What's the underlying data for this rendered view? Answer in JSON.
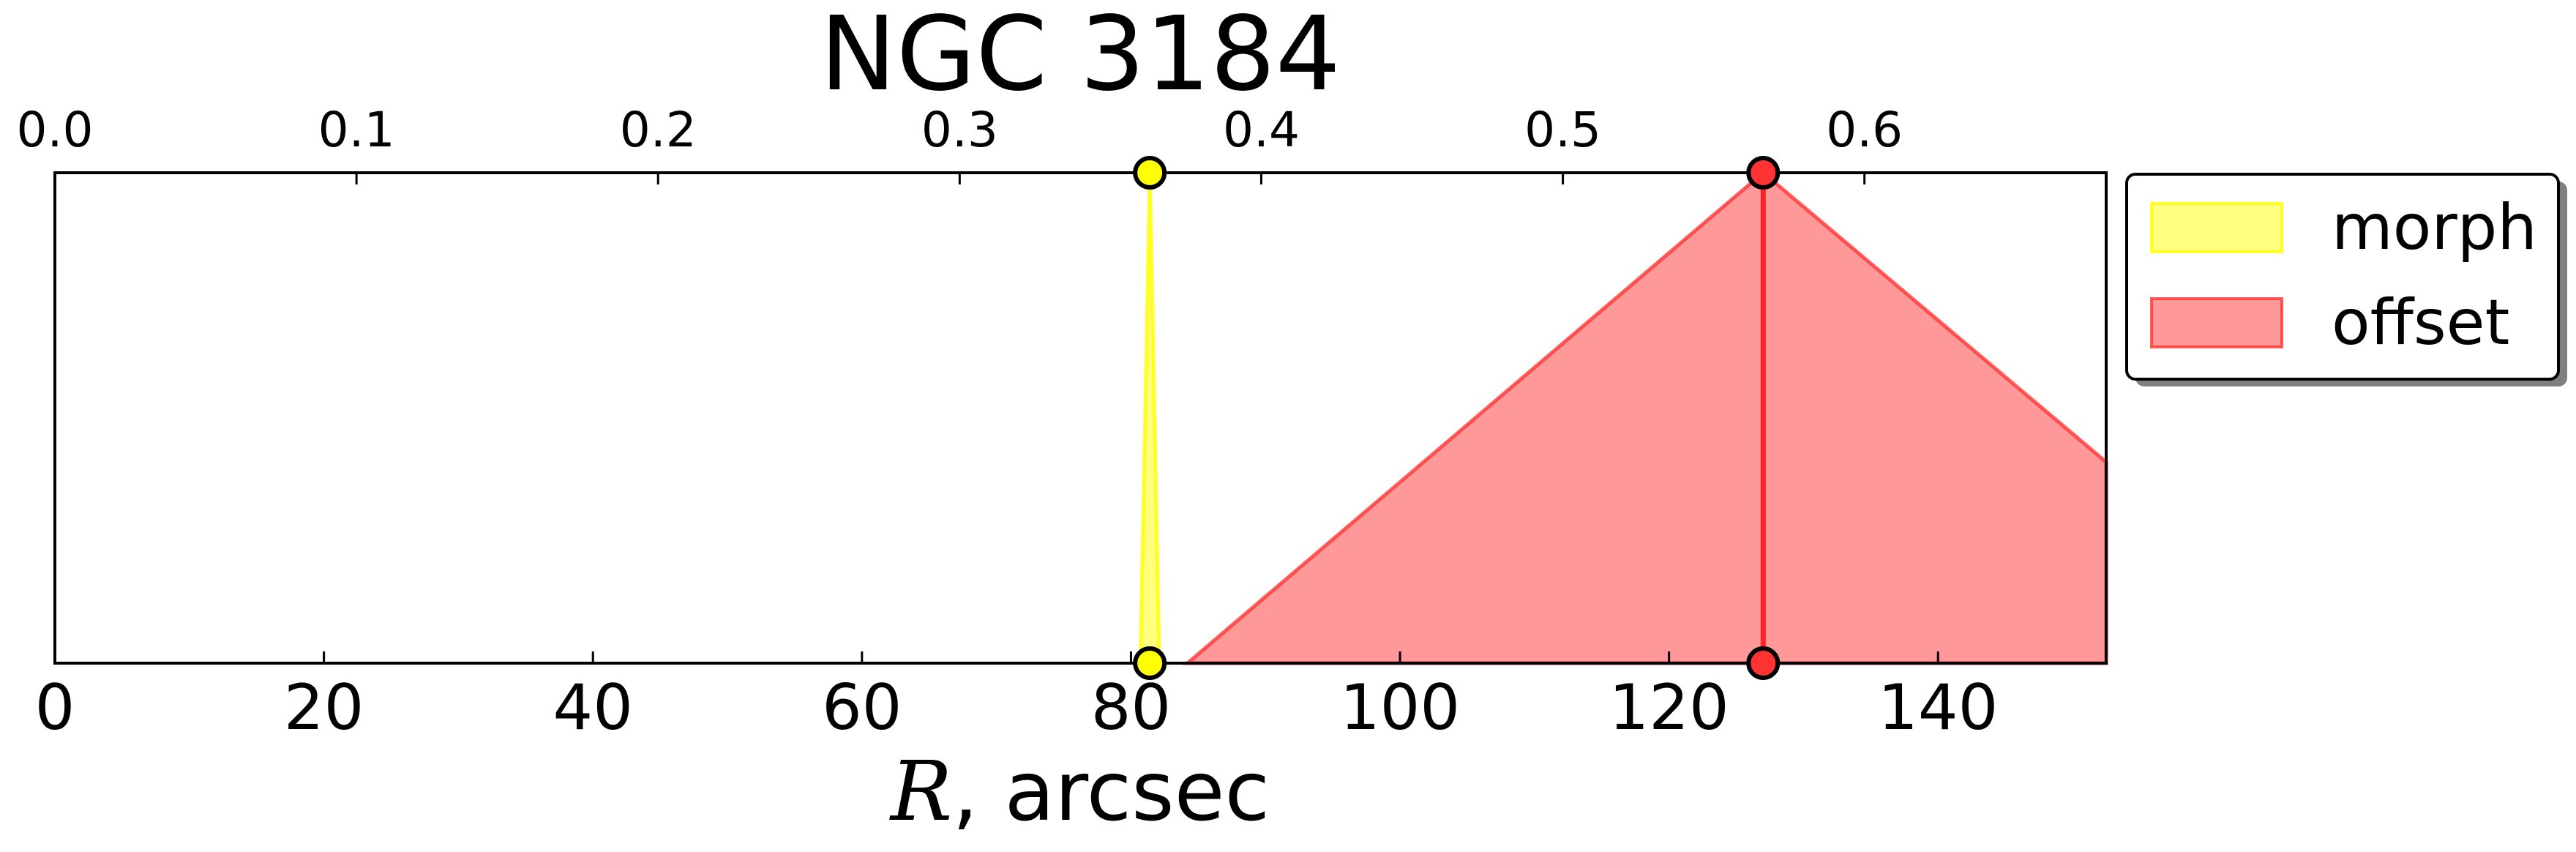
{
  "chart_data": {
    "type": "area",
    "title": "NGC 3184",
    "xlabel_symbol": "R",
    "xlabel_unit": ", arcsec",
    "xlim": [
      0,
      152.5
    ],
    "x_ticks": [
      "0",
      "20",
      "40",
      "60",
      "80",
      "100",
      "120",
      "140"
    ],
    "x_tick_values": [
      0,
      20,
      40,
      60,
      80,
      100,
      120,
      140
    ],
    "top_axis_ticks": [
      "0.0",
      "0.1",
      "0.2",
      "0.3",
      "0.4",
      "0.5",
      "0.6"
    ],
    "top_axis_per_bottom_unit": 0.00446,
    "ylim": [
      0,
      1
    ],
    "legend_position": "upper-right-outside",
    "series": [
      {
        "name": "morph",
        "color": "#ffff00",
        "alpha": 0.5,
        "x": [
          80.7,
          81.4,
          82.1
        ],
        "y": [
          0,
          1,
          0
        ],
        "marker_r": 81.4,
        "marker_edge": "#000000"
      },
      {
        "name": "offset",
        "color": "#ff3333",
        "alpha": 0.5,
        "x": [
          84.2,
          127.0,
          152.5
        ],
        "y": [
          0,
          1,
          0.41
        ],
        "marker_r": 127.0,
        "marker_edge": "#000000",
        "line_color": "#ff2222"
      }
    ]
  }
}
